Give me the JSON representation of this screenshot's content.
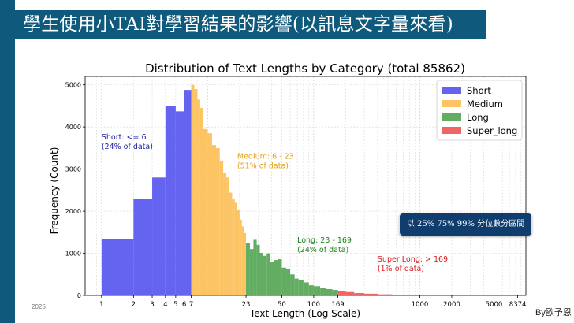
{
  "slide": {
    "title": "學生使用小TAI對學習結果的影響(以訊息文字量來看)",
    "info_button": "以 25% 75% 99% 分位數分區間",
    "footer_date": "2025",
    "footer_author": "By歐予恩"
  },
  "colors": {
    "slide_accent": "#0f5a7c",
    "short": "#6464f0",
    "medium": "#fcc463",
    "long": "#63ad63",
    "super_long": "#ef6465"
  },
  "chart_data": {
    "type": "bar",
    "title": "Distribution of Text Lengths by Category (total 85862)",
    "xlabel": "Text Length (Log Scale)",
    "ylabel": "Frequency (Count)",
    "xscale": "log",
    "xlim": [
      0.7,
      10000
    ],
    "ylim": [
      0,
      5200
    ],
    "xticks": [
      1,
      2,
      3,
      4,
      5,
      6,
      7,
      23,
      50,
      100,
      169,
      1000,
      2000,
      5000,
      8374
    ],
    "yticks": [
      0,
      1000,
      2000,
      3000,
      4000,
      5000
    ],
    "grid": true,
    "legend_position": "top-right",
    "series": [
      {
        "name": "Short",
        "color": "#6464f0",
        "bins": [
          [
            1,
            2,
            1340
          ],
          [
            2,
            3,
            2300
          ],
          [
            3,
            4,
            2800
          ],
          [
            4,
            5,
            4500
          ],
          [
            5,
            6,
            4370
          ],
          [
            6,
            7,
            4880
          ]
        ]
      },
      {
        "name": "Medium",
        "color": "#fcc463",
        "bins": [
          [
            7,
            7.5,
            5000
          ],
          [
            7.5,
            8,
            4900
          ],
          [
            8,
            8.5,
            4650
          ],
          [
            8.5,
            9,
            4450
          ],
          [
            9,
            10,
            3950
          ],
          [
            10,
            11,
            3850
          ],
          [
            11,
            12,
            3570
          ],
          [
            12,
            13,
            3500
          ],
          [
            13,
            14,
            3200
          ],
          [
            14,
            15,
            2900
          ],
          [
            15,
            16,
            2800
          ],
          [
            16,
            17,
            2440
          ],
          [
            17,
            18,
            2300
          ],
          [
            18,
            19,
            2200
          ],
          [
            19,
            20,
            2030
          ],
          [
            20,
            21,
            1800
          ],
          [
            21,
            22,
            1640
          ],
          [
            22,
            23,
            1480
          ]
        ]
      },
      {
        "name": "Long",
        "color": "#63ad63",
        "bins": [
          [
            23,
            25,
            1250
          ],
          [
            25,
            27,
            1100
          ],
          [
            27,
            29,
            1320
          ],
          [
            29,
            31,
            1200
          ],
          [
            31,
            33,
            1010
          ],
          [
            33,
            36,
            940
          ],
          [
            36,
            39,
            1000
          ],
          [
            39,
            42,
            800
          ],
          [
            42,
            46,
            840
          ],
          [
            46,
            50,
            860
          ],
          [
            50,
            55,
            660
          ],
          [
            55,
            60,
            630
          ],
          [
            60,
            66,
            500
          ],
          [
            66,
            72,
            400
          ],
          [
            72,
            80,
            360
          ],
          [
            80,
            90,
            310
          ],
          [
            90,
            100,
            240
          ],
          [
            100,
            115,
            220
          ],
          [
            115,
            130,
            180
          ],
          [
            130,
            150,
            150
          ],
          [
            150,
            169,
            130
          ]
        ]
      },
      {
        "name": "Super_long",
        "color": "#ef6465",
        "bins": [
          [
            169,
            200,
            110
          ],
          [
            200,
            240,
            80
          ],
          [
            240,
            300,
            55
          ],
          [
            300,
            400,
            40
          ],
          [
            400,
            550,
            25
          ],
          [
            550,
            800,
            15
          ],
          [
            800,
            1200,
            10
          ],
          [
            1200,
            2000,
            6
          ],
          [
            2000,
            4000,
            3
          ],
          [
            4000,
            8374,
            1
          ]
        ]
      }
    ],
    "annotations": [
      {
        "text": "Short: <= 6",
        "sub": "(24% of data)",
        "color": "#1a1aa8",
        "x": 1.0,
        "y": 3700
      },
      {
        "text": "Medium: 6 - 23",
        "sub": "(51% of data)",
        "color": "#e3a21a",
        "x": 19,
        "y": 3250
      },
      {
        "text": "Long: 23 - 169",
        "sub": "(24% of data)",
        "color": "#1b801b",
        "x": 70,
        "y": 1250
      },
      {
        "text": "Super Long: > 169",
        "sub": "(1% of data)",
        "color": "#d62020",
        "x": 400,
        "y": 800
      }
    ]
  }
}
